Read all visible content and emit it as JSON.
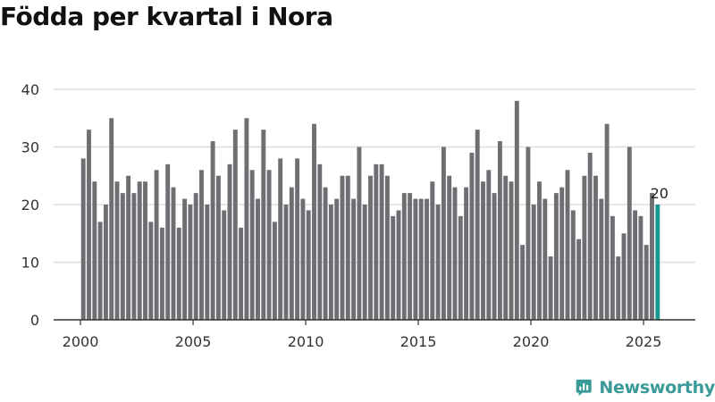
{
  "title": "Födda per kvartal i Nora",
  "brand": {
    "name": "Newsworthy",
    "icon": "newsworthy-logo-icon",
    "color": "#3a9a97"
  },
  "colors": {
    "bar": "#6f6e73",
    "highlight": "#1a968f",
    "grid": "#dddddd",
    "axis": "#333333",
    "text": "#333333"
  },
  "chart_data": {
    "type": "bar",
    "title": "Födda per kvartal i Nora",
    "xlabel": "",
    "ylabel": "",
    "ylim": [
      0,
      40
    ],
    "yticks": [
      0,
      10,
      20,
      30,
      40
    ],
    "xticks": [
      "2000",
      "2005",
      "2010",
      "2015",
      "2020",
      "2025"
    ],
    "grid": true,
    "legend": "none",
    "start": "2000 Q1",
    "end": "2025 Q3",
    "values": [
      28,
      33,
      24,
      17,
      20,
      35,
      24,
      22,
      25,
      22,
      24,
      24,
      17,
      26,
      16,
      27,
      23,
      16,
      21,
      20,
      22,
      26,
      20,
      31,
      25,
      19,
      27,
      33,
      16,
      35,
      26,
      21,
      33,
      26,
      17,
      28,
      20,
      23,
      28,
      21,
      19,
      34,
      27,
      23,
      20,
      21,
      25,
      25,
      21,
      30,
      20,
      25,
      27,
      27,
      25,
      18,
      19,
      22,
      22,
      21,
      21,
      21,
      24,
      20,
      30,
      25,
      23,
      18,
      23,
      29,
      33,
      24,
      26,
      22,
      31,
      25,
      24,
      38,
      13,
      30,
      20,
      24,
      21,
      11,
      22,
      23,
      26,
      19,
      14,
      25,
      29,
      25,
      21,
      34,
      18,
      11,
      15,
      30,
      19,
      18,
      13,
      22,
      20
    ],
    "highlight_label": "20"
  }
}
